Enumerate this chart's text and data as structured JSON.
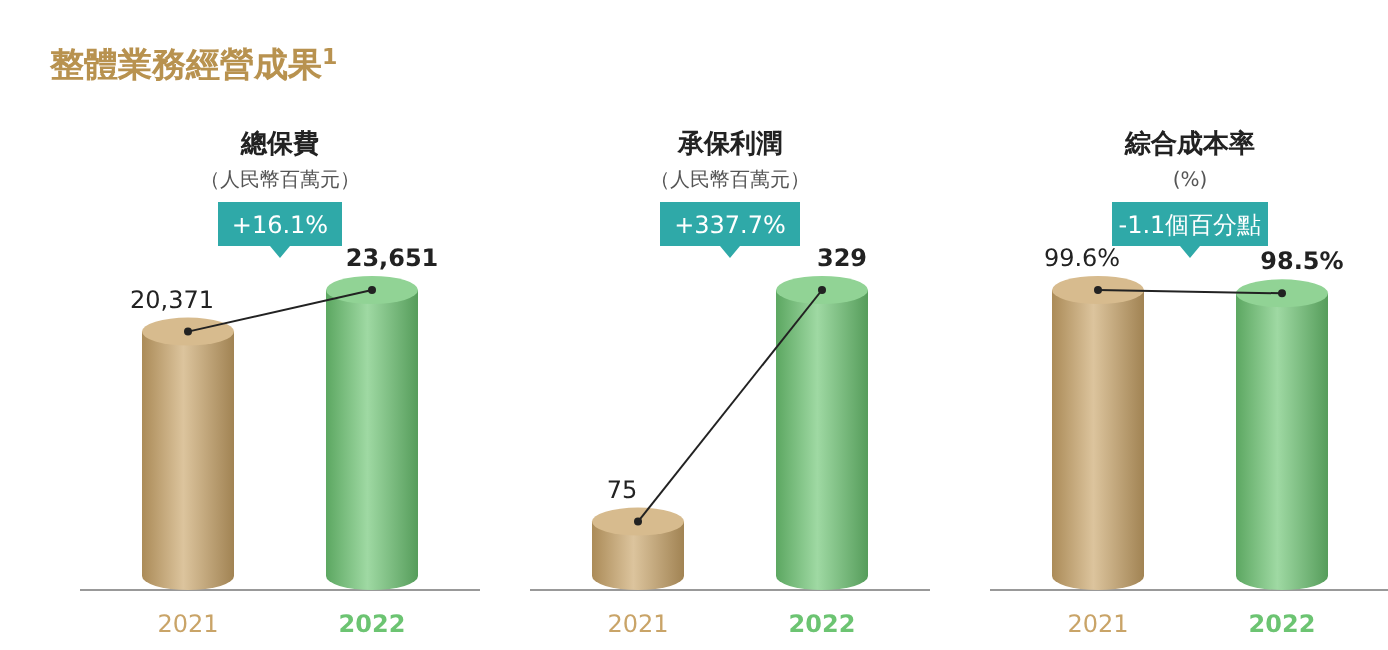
{
  "chart_data": [
    {
      "type": "other",
      "title": "整體業務經營成果$^{1}$"
    },
    {
      "type": "bar",
      "title": "總保費",
      "subtitle": "（人民幣百萬元）",
      "annotations": [
        "+16.1%"
      ],
      "categories": [
        "2021",
        "2022"
      ],
      "values": [
        20371,
        23651
      ],
      "value_labels": [
        "20,371",
        "23,651"
      ],
      "colors": [
        "#c9a468",
        "#6cc472"
      ]
    },
    {
      "type": "bar",
      "title": "承保利潤",
      "subtitle": "（人民幣百萬元）",
      "annotations": [
        "+337.7%"
      ],
      "categories": [
        "2021",
        "2022"
      ],
      "values": [
        75,
        329
      ],
      "value_labels": [
        "75",
        "329"
      ],
      "colors": [
        "#c9a468",
        "#6cc472"
      ]
    },
    {
      "type": "bar",
      "title": "綜合成本率",
      "subtitle": "(%)",
      "annotations": [
        "-1.1個百分點"
      ],
      "categories": [
        "2021",
        "2022"
      ],
      "values": [
        99.6,
        98.5
      ],
      "value_labels": [
        "99.6%",
        "98.5%"
      ],
      "colors": [
        "#c9a468",
        "#6cc472"
      ]
    }
  ]
}
